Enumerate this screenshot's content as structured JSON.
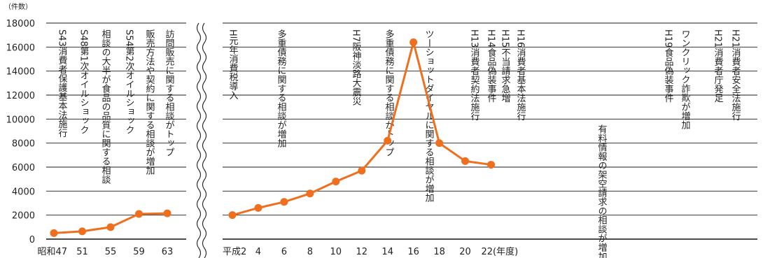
{
  "chart_data": {
    "type": "line",
    "unit": "（件数）",
    "ylim": [
      0,
      18000
    ],
    "y_ticks": [
      "0",
      "2000",
      "4000",
      "6000",
      "8000",
      "10000",
      "12000",
      "14000",
      "16000",
      "18000"
    ],
    "grid": true,
    "axis_break": true,
    "color": "#ee6f1e",
    "segments": [
      {
        "name": "showa",
        "x_labels": [
          "昭和47",
          "51",
          "55",
          "59",
          "63"
        ],
        "values": [
          500,
          650,
          1000,
          2100,
          2150
        ]
      },
      {
        "name": "heisei",
        "x_labels": [
          "平成2",
          "4",
          "6",
          "8",
          "10",
          "12",
          "14",
          "16",
          "18",
          "20",
          "22(年度)"
        ],
        "values": [
          2000,
          2600,
          3100,
          3800,
          4800,
          5700,
          8200,
          16400,
          8000,
          6500,
          6200
        ]
      }
    ],
    "annotations": [
      "S43消費者保護基本法施行",
      "S48第1次オイルショック",
      "相談の大半が食品の品質に関する相談",
      "S54第2次オイルショック",
      "販売方法や契約に関する相談が増加",
      "訪問販売に関する相談がトップ",
      "H元年消費税導入",
      "多重債務に関する相談が増加",
      "H7阪神淡路大震災",
      "多重債務に関する相談がトップ",
      "ツーショットダイヤルに関する相談が増加",
      "H13消費者契約法施行",
      "H14食品偽装事件",
      "H15不当請求急増",
      "H16消費者基本法施行",
      "有料情報の架空請求の相談が増加",
      "H19食品偽装事件",
      "ワンクリック詐欺が増加",
      "H21消費者庁発足",
      "H21消費者安全法施行"
    ]
  }
}
